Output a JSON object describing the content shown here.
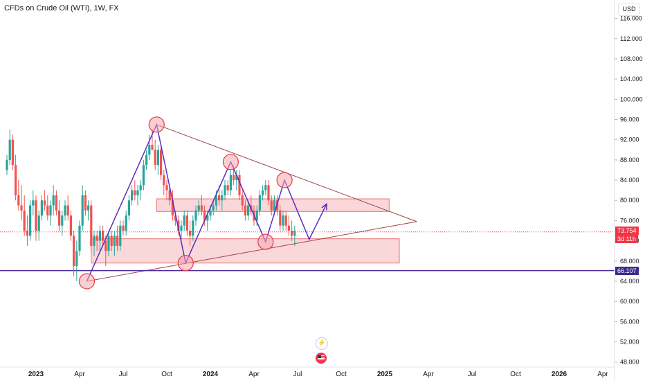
{
  "header": {
    "title": "CFDs on Crude Oil (WTI), 1W, FX",
    "currency": "USD"
  },
  "price_scale": {
    "last_price": "73.754",
    "countdown": "3d 11h",
    "level_label": "66.107"
  },
  "colors": {
    "up": "#26a69a",
    "down": "#ef5350",
    "zone_fill": "#f8c9cc",
    "zone_border": "#e57373",
    "trendline": "#a0424a",
    "path": "#5b2bc4",
    "level": "#4a2a9a",
    "last_price_badge": "#f23645"
  },
  "icons": [
    "lightning-icon",
    "flag-icon"
  ],
  "chart_data": {
    "type": "candlestick",
    "title": "CFDs on Crude Oil (WTI), 1W, FX",
    "y_ticks": [
      "116.000",
      "112.000",
      "108.000",
      "104.000",
      "100.000",
      "96.000",
      "92.000",
      "88.000",
      "84.000",
      "80.000",
      "76.000",
      "72.000",
      "68.000",
      "64.000",
      "60.000",
      "56.000",
      "52.000",
      "48.000"
    ],
    "ylim": [
      47,
      118
    ],
    "x_ticks": [
      {
        "label": "2023",
        "t": 0,
        "bold": true
      },
      {
        "label": "Apr",
        "t": 3
      },
      {
        "label": "Jul",
        "t": 6
      },
      {
        "label": "Oct",
        "t": 9
      },
      {
        "label": "2024",
        "t": 12,
        "bold": true
      },
      {
        "label": "Apr",
        "t": 15
      },
      {
        "label": "Jul",
        "t": 18
      },
      {
        "label": "Oct",
        "t": 21
      },
      {
        "label": "2025",
        "t": 24,
        "bold": true
      },
      {
        "label": "Apr",
        "t": 27
      },
      {
        "label": "Jul",
        "t": 30
      },
      {
        "label": "Oct",
        "t": 33
      },
      {
        "label": "2026",
        "t": 36,
        "bold": true
      },
      {
        "label": "Apr",
        "t": 39
      }
    ],
    "candles": [
      [
        -2.0,
        86,
        89,
        85,
        88
      ],
      [
        -1.8,
        88,
        94,
        87,
        92
      ],
      [
        -1.6,
        92,
        93,
        86,
        87
      ],
      [
        -1.4,
        87,
        89,
        80,
        81
      ],
      [
        -1.2,
        81,
        84,
        78,
        79
      ],
      [
        -1.0,
        79,
        83,
        76,
        78
      ],
      [
        -0.8,
        78,
        81,
        73,
        74
      ],
      [
        -0.6,
        74,
        77,
        71,
        73
      ],
      [
        -0.4,
        73,
        80,
        72,
        79
      ],
      [
        -0.2,
        79,
        82,
        77,
        80
      ],
      [
        0.0,
        80,
        81,
        72,
        74
      ],
      [
        0.2,
        74,
        78,
        72,
        77
      ],
      [
        0.4,
        77,
        81,
        76,
        80
      ],
      [
        0.6,
        80,
        82,
        78,
        79
      ],
      [
        0.8,
        79,
        81,
        76,
        77
      ],
      [
        1.0,
        77,
        80,
        75,
        79
      ],
      [
        1.2,
        79,
        83,
        77,
        81
      ],
      [
        1.4,
        81,
        82,
        77,
        78
      ],
      [
        1.6,
        78,
        80,
        74,
        75
      ],
      [
        1.8,
        75,
        78,
        73,
        77
      ],
      [
        2.0,
        77,
        80,
        76,
        79
      ],
      [
        2.2,
        79,
        81,
        76,
        77
      ],
      [
        2.4,
        77,
        78,
        72,
        73
      ],
      [
        2.6,
        73,
        74,
        65,
        67
      ],
      [
        2.8,
        67,
        72,
        64,
        70
      ],
      [
        3.0,
        70,
        76,
        69,
        75
      ],
      [
        3.2,
        75,
        83,
        74,
        81
      ],
      [
        3.4,
        81,
        82,
        77,
        78
      ],
      [
        3.6,
        78,
        80,
        76,
        79
      ],
      [
        3.8,
        79,
        80,
        70,
        71
      ],
      [
        4.0,
        71,
        74,
        69,
        73
      ],
      [
        4.2,
        73,
        74,
        70,
        72
      ],
      [
        4.4,
        72,
        75,
        70,
        74
      ],
      [
        4.6,
        74,
        75,
        71,
        72
      ],
      [
        4.8,
        72,
        73,
        67,
        70
      ],
      [
        5.0,
        70,
        74,
        69,
        73
      ],
      [
        5.2,
        73,
        74,
        70,
        71
      ],
      [
        5.4,
        71,
        74,
        69,
        73
      ],
      [
        5.6,
        73,
        75,
        70,
        71
      ],
      [
        5.8,
        71,
        76,
        70,
        75
      ],
      [
        6.0,
        75,
        76,
        73,
        74
      ],
      [
        6.2,
        74,
        78,
        73,
        77
      ],
      [
        6.4,
        77,
        81,
        76,
        80
      ],
      [
        6.6,
        80,
        83,
        79,
        82
      ],
      [
        6.8,
        82,
        84,
        80,
        81
      ],
      [
        7.0,
        81,
        83,
        79,
        82
      ],
      [
        7.2,
        82,
        84,
        80,
        83
      ],
      [
        7.4,
        83,
        88,
        82,
        87
      ],
      [
        7.6,
        87,
        90,
        86,
        89
      ],
      [
        7.8,
        89,
        93,
        88,
        91
      ],
      [
        8.0,
        91,
        94,
        90,
        90
      ],
      [
        8.2,
        90,
        92,
        86,
        87
      ],
      [
        8.4,
        87,
        91,
        85,
        90
      ],
      [
        8.6,
        90,
        91,
        84,
        85
      ],
      [
        8.8,
        85,
        86,
        81,
        83
      ],
      [
        9.0,
        83,
        84,
        80,
        82
      ],
      [
        9.2,
        82,
        83,
        79,
        80
      ],
      [
        9.4,
        80,
        82,
        76,
        77
      ],
      [
        9.6,
        77,
        78,
        75,
        76
      ],
      [
        9.8,
        76,
        77,
        73,
        74
      ],
      [
        10.0,
        74,
        76,
        72,
        75
      ],
      [
        10.2,
        75,
        78,
        74,
        77
      ],
      [
        10.4,
        77,
        78,
        73,
        74
      ],
      [
        10.6,
        74,
        76,
        71,
        73
      ],
      [
        10.8,
        73,
        77,
        72,
        76
      ],
      [
        11.0,
        76,
        79,
        75,
        78
      ],
      [
        11.2,
        78,
        80,
        77,
        79
      ],
      [
        11.4,
        79,
        81,
        77,
        78
      ],
      [
        11.6,
        78,
        79,
        75,
        76
      ],
      [
        11.8,
        76,
        78,
        74,
        77
      ],
      [
        12.0,
        77,
        79,
        76,
        78
      ],
      [
        12.2,
        78,
        80,
        77,
        79
      ],
      [
        12.4,
        79,
        82,
        78,
        81
      ],
      [
        12.6,
        81,
        83,
        79,
        80
      ],
      [
        12.8,
        80,
        82,
        78,
        81
      ],
      [
        13.0,
        81,
        84,
        80,
        83
      ],
      [
        13.2,
        83,
        84,
        81,
        82
      ],
      [
        13.4,
        82,
        86,
        81,
        85
      ],
      [
        13.6,
        85,
        87,
        83,
        84
      ],
      [
        13.8,
        84,
        86,
        82,
        85
      ],
      [
        14.0,
        85,
        86,
        80,
        81
      ],
      [
        14.2,
        81,
        82,
        78,
        79
      ],
      [
        14.4,
        79,
        80,
        76,
        77
      ],
      [
        14.6,
        77,
        80,
        76,
        79
      ],
      [
        14.8,
        79,
        81,
        77,
        78
      ],
      [
        15.0,
        78,
        79,
        75,
        76
      ],
      [
        15.2,
        76,
        79,
        75,
        78
      ],
      [
        15.4,
        78,
        82,
        77,
        81
      ],
      [
        15.6,
        81,
        83,
        80,
        82
      ],
      [
        15.8,
        82,
        84,
        81,
        83
      ],
      [
        16.0,
        83,
        84,
        79,
        80
      ],
      [
        16.2,
        80,
        81,
        77,
        78
      ],
      [
        16.4,
        78,
        81,
        77,
        80
      ],
      [
        16.6,
        80,
        81,
        77,
        78
      ],
      [
        16.8,
        78,
        79,
        74,
        75
      ],
      [
        17.0,
        75,
        78,
        74,
        77
      ],
      [
        17.2,
        77,
        78,
        74,
        75
      ],
      [
        17.4,
        75,
        77,
        73,
        74
      ],
      [
        17.6,
        74,
        76,
        72,
        73
      ],
      [
        17.8,
        73,
        75,
        71,
        74
      ]
    ],
    "annotations": {
      "support_zone": {
        "t0": 3.8,
        "t1": 25.0,
        "p0": 67.6,
        "p1": 72.4
      },
      "resistance_zone": {
        "t0": 8.3,
        "t1": 24.3,
        "p0": 77.8,
        "p1": 80.3
      },
      "upper_trendline": [
        [
          8.3,
          95.0
        ],
        [
          26.2,
          75.8
        ]
      ],
      "lower_trendline": [
        [
          3.5,
          64.0
        ],
        [
          26.2,
          75.8
        ]
      ],
      "horizontal_level": 66.107,
      "wave_path": [
        [
          3.5,
          64.0
        ],
        [
          8.3,
          95.0
        ],
        [
          10.3,
          67.6
        ],
        [
          13.4,
          87.6
        ],
        [
          15.8,
          71.8
        ],
        [
          17.1,
          84.0
        ],
        [
          18.8,
          72.3
        ],
        [
          20.0,
          79.3
        ]
      ],
      "pivot_circles": [
        [
          3.5,
          64.0
        ],
        [
          8.3,
          95.0
        ],
        [
          10.3,
          67.6
        ],
        [
          13.4,
          87.6
        ],
        [
          15.8,
          71.8
        ],
        [
          17.1,
          84.0
        ]
      ],
      "last_price_line": 73.754
    }
  }
}
